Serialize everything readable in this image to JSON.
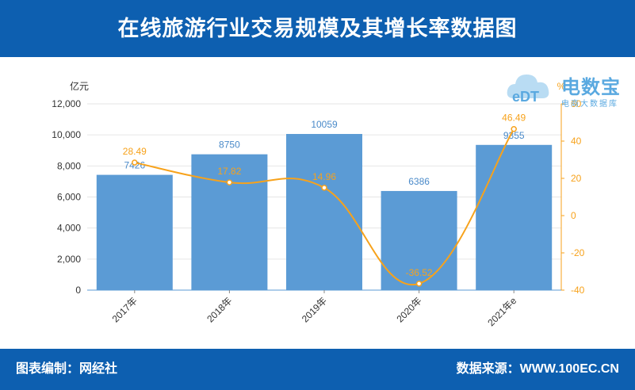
{
  "header": {
    "title": "在线旅游行业交易规模及其增长率数据图"
  },
  "footer": {
    "left_text": "图表编制：网经社",
    "right_text": "数据来源：WWW.100EC.CN"
  },
  "logo": {
    "main_text": "电数宝",
    "sub_text": "电商大数据库",
    "mark_text": "eDT"
  },
  "chart_data": {
    "type": "bar",
    "categories": [
      "2017年",
      "2018年",
      "2019年",
      "2020年",
      "2021年e"
    ],
    "series": [
      {
        "values": [
          7426,
          8750,
          10059,
          6386,
          9355
        ],
        "axis": "left",
        "type": "bar",
        "color": "#5b9bd5"
      },
      {
        "values": [
          28.49,
          17.82,
          14.96,
          -36.52,
          46.49
        ],
        "axis": "right",
        "type": "line",
        "color": "#f7a21b"
      }
    ],
    "ylabel": "亿元",
    "y2label": "%",
    "ylim": [
      0,
      12000
    ],
    "y2lim": [
      -40,
      60
    ],
    "y_ticks": [
      "0",
      "2,000",
      "4,000",
      "6,000",
      "8,000",
      "10,000",
      "12,000"
    ],
    "y_tick_values": [
      0,
      2000,
      4000,
      6000,
      8000,
      10000,
      12000
    ],
    "y2_ticks": [
      "-40",
      "-20",
      "0",
      "20",
      "40",
      "60"
    ],
    "y2_tick_values": [
      -40,
      -20,
      0,
      20,
      40,
      60
    ],
    "grid": true,
    "legend": "none"
  }
}
